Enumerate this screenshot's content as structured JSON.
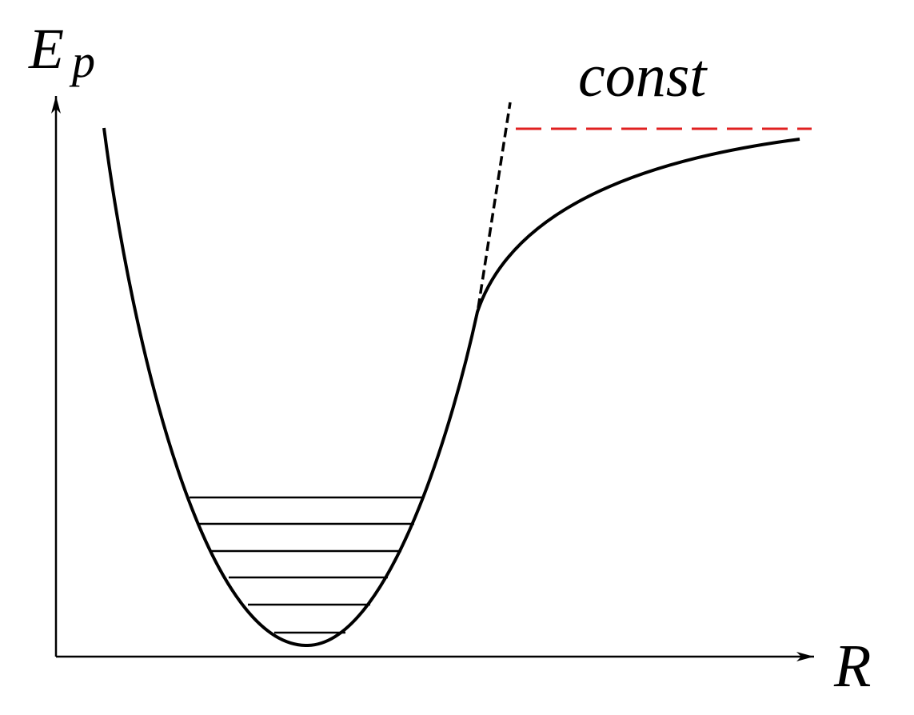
{
  "y_axis_label": {
    "symbol": "E",
    "subscript": "p"
  },
  "x_axis_label": "R",
  "asymptote_label": "const"
}
